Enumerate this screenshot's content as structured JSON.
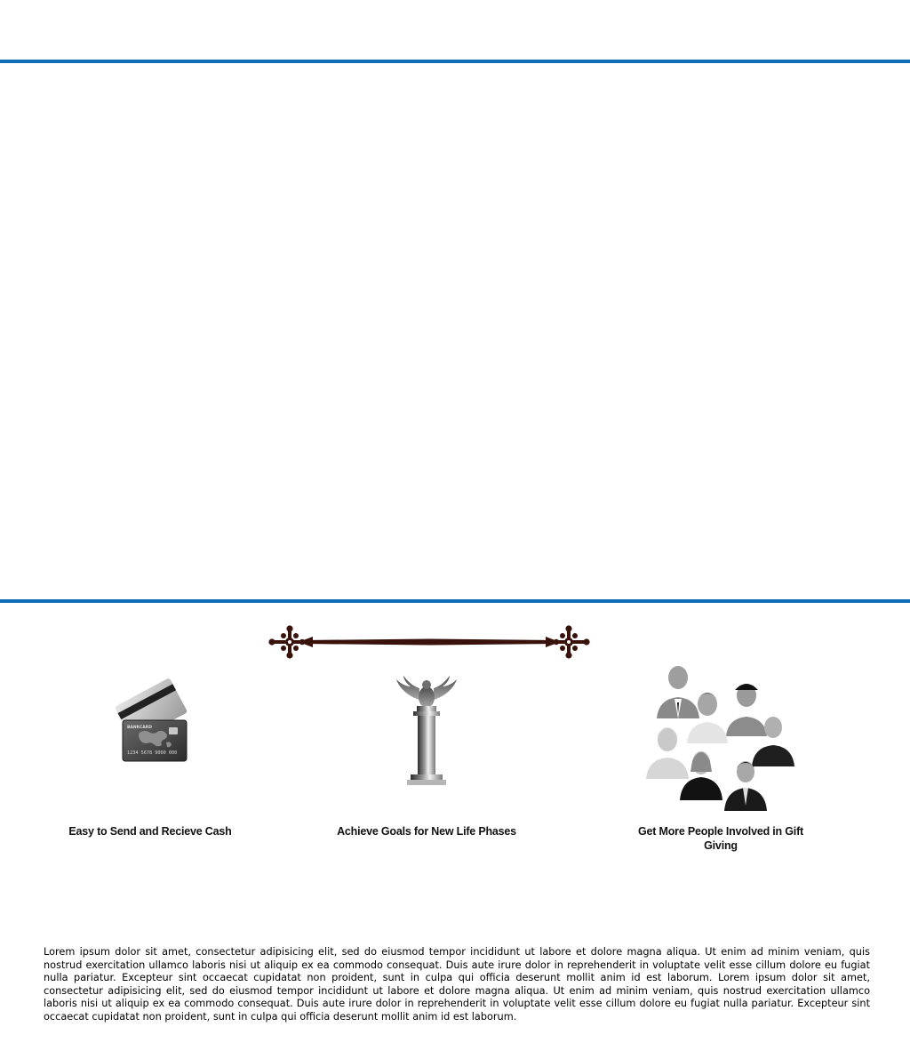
{
  "features": [
    {
      "icon": "credit-card-icon",
      "label": "Easy to Send and Recieve Cash",
      "card_text": "BANKCARD",
      "card_number": "1234 5678 9000 000"
    },
    {
      "icon": "trophy-pillar-icon",
      "label": "Achieve Goals for New Life Phases"
    },
    {
      "icon": "people-group-icon",
      "label": "Get More People Involved in Gift Giving"
    }
  ],
  "body_text": "Lorem ipsum dolor sit amet, consectetur adipisicing elit, sed do eiusmod tempor incididunt ut labore et dolore magna aliqua. Ut enim ad minim veniam, quis nostrud exercitation ullamco laboris nisi ut aliquip ex ea commodo consequat. Duis aute irure dolor in reprehenderit in voluptate velit esse cillum dolore eu fugiat nulla pariatur. Excepteur sint occaecat cupidatat non proident, sunt in culpa qui officia deserunt mollit anim id est laborum. Lorem ipsum dolor sit amet, consectetur adipisicing elit, sed do eiusmod tempor incididunt ut labore et dolore magna aliqua. Ut enim ad minim veniam, quis nostrud exercitation ullamco laboris nisi ut aliquip ex ea commodo consequat. Duis aute irure dolor in reprehenderit in voluptate velit esse cillum dolore eu fugiat nulla pariatur. Excepteur sint occaecat cupidatat non proident, sunt in culpa qui officia deserunt mollit anim id est laborum.",
  "colors": {
    "accent_rule": "#0f6db8",
    "ornament": "#3a120c"
  }
}
